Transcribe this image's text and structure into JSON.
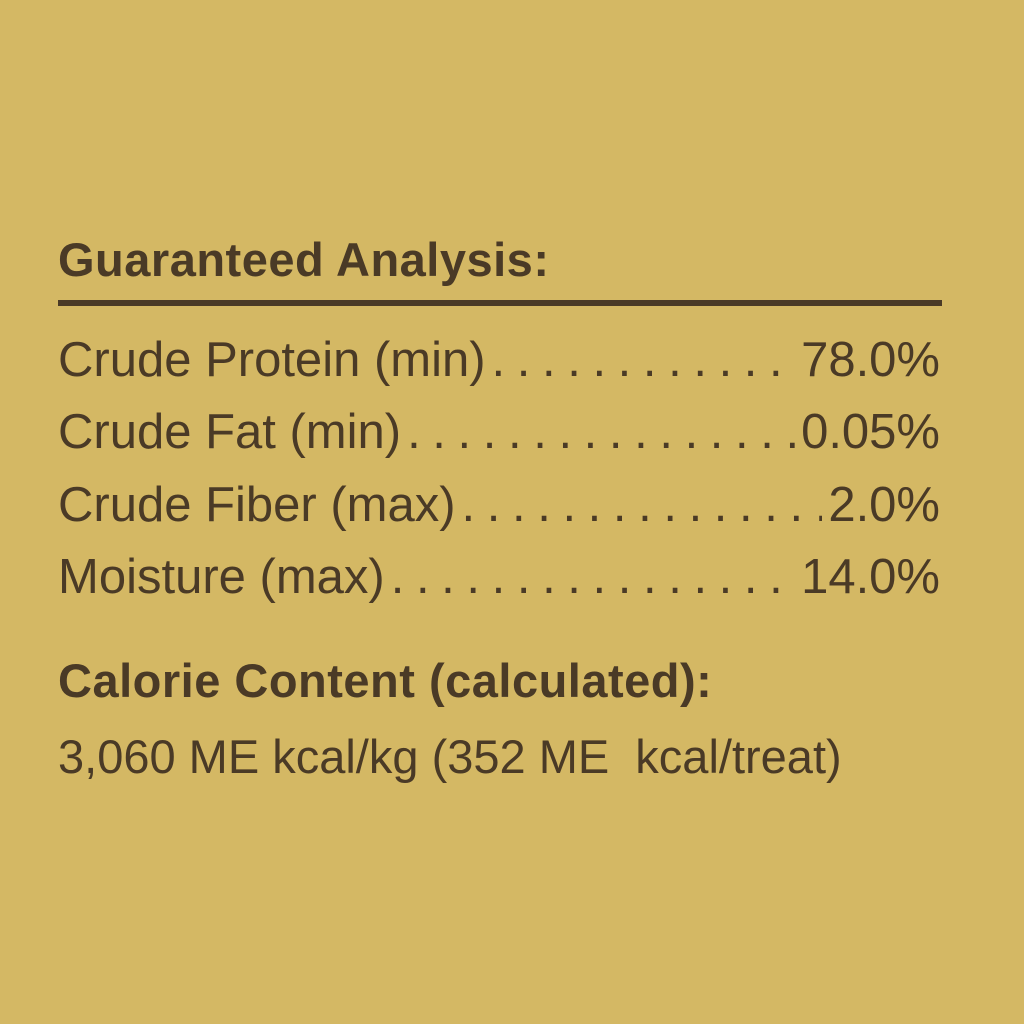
{
  "guaranteed_analysis": {
    "title": "Guaranteed Analysis:",
    "rows": [
      {
        "label": "Crude Protein (min)",
        "value": "78.0%"
      },
      {
        "label": "Crude Fat (min)",
        "value": "0.05%"
      },
      {
        "label": "Crude Fiber (max)",
        "value": "2.0%"
      },
      {
        "label": "Moisture (max)",
        "value": "14.0%"
      }
    ]
  },
  "calorie_content": {
    "title": "Calorie Content (calculated):",
    "value": "3,060 ME kcal/kg (352 ME  kcal/treat)"
  },
  "colors": {
    "background": "#d4b864",
    "text": "#4a3a26"
  }
}
